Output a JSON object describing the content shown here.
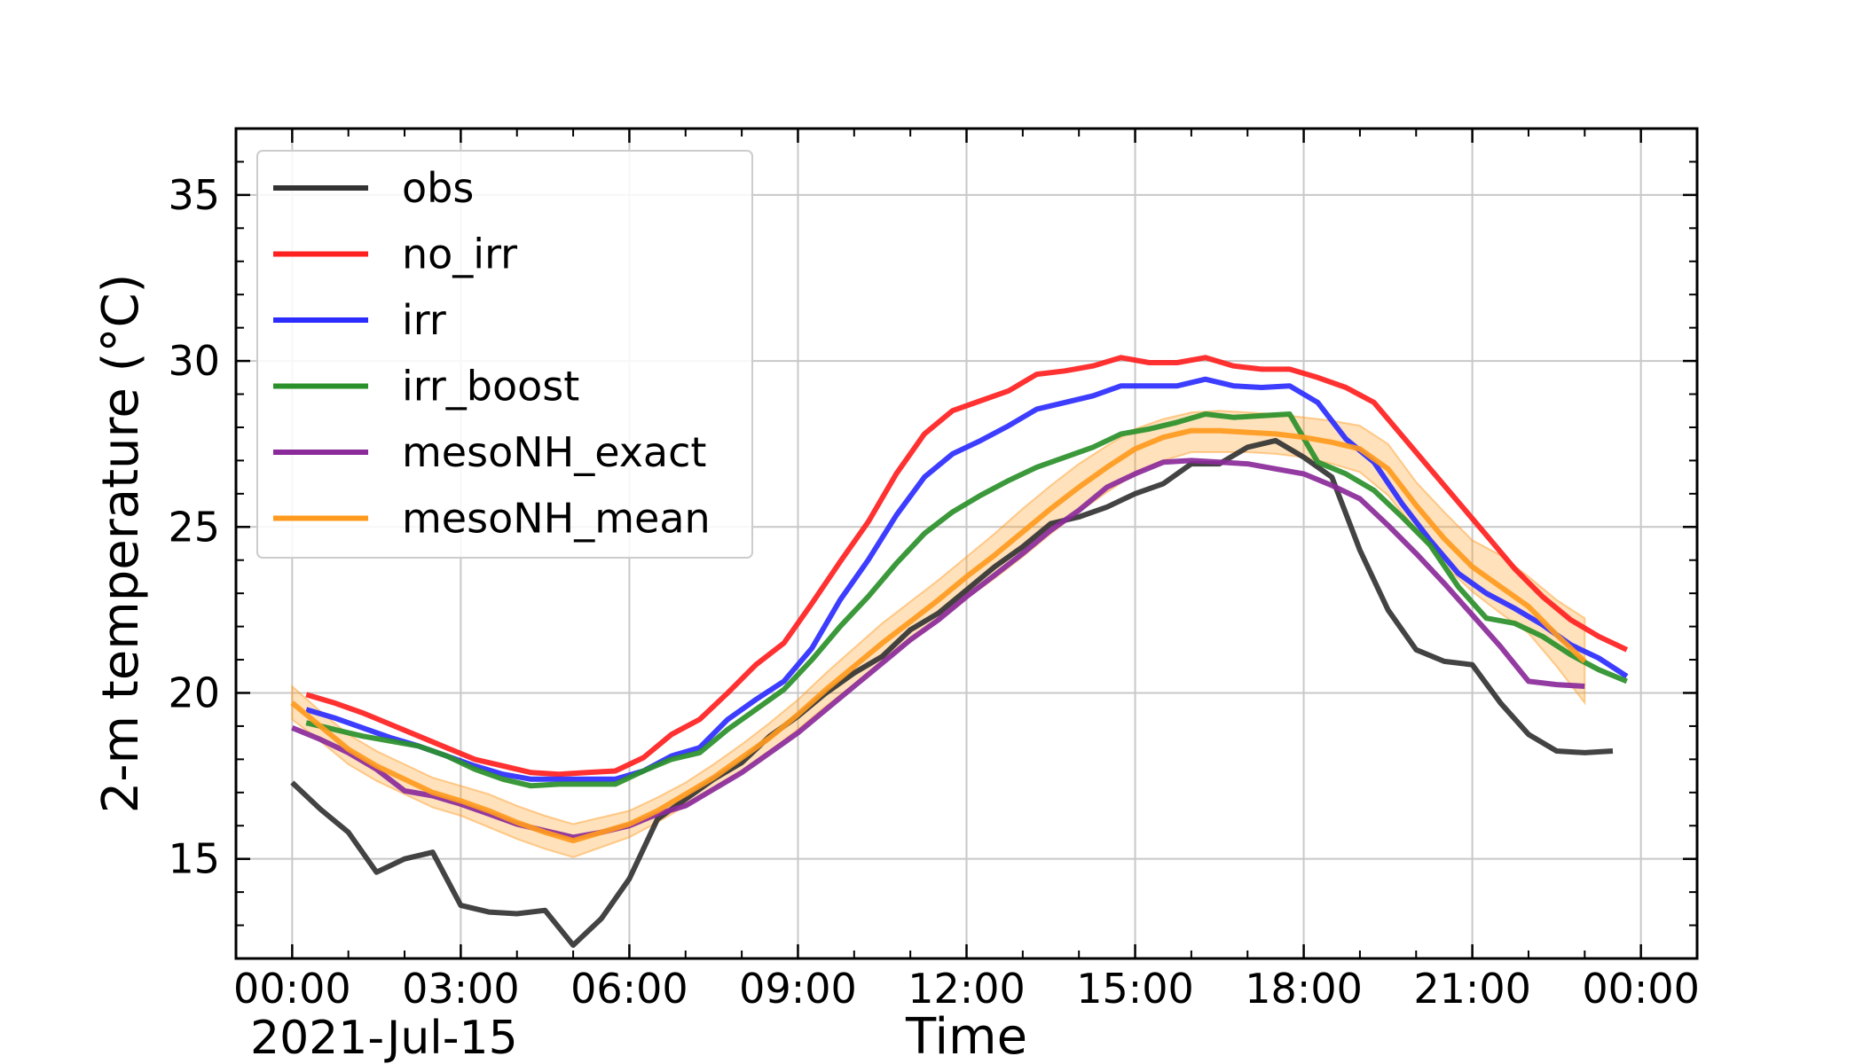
{
  "chart_data": {
    "type": "line",
    "xlabel": "Time",
    "ylabel": "2-m temperature (°C)",
    "date_label": "2021-Jul-15",
    "x_unit": "hours since 2021-07-15 00:00",
    "xlim": [
      -1.0,
      25.0
    ],
    "ylim": [
      12.0,
      37.0
    ],
    "x_ticks": [
      0,
      3,
      6,
      9,
      12,
      15,
      18,
      21,
      24
    ],
    "x_tick_labels": [
      "00:00",
      "03:00",
      "06:00",
      "09:00",
      "12:00",
      "15:00",
      "18:00",
      "21:00",
      "00:00"
    ],
    "y_ticks": [
      15,
      20,
      25,
      30,
      35
    ],
    "y_tick_labels": [
      "15",
      "20",
      "25",
      "30",
      "35"
    ],
    "grid": true,
    "legend_position": "top-left",
    "series": [
      {
        "name": "obs",
        "color": "#333333",
        "x": [
          0,
          0.5,
          1,
          1.5,
          2,
          2.5,
          3,
          3.5,
          4,
          4.5,
          5,
          5.5,
          6,
          6.5,
          7,
          7.5,
          8,
          8.5,
          9,
          9.5,
          10,
          10.5,
          11,
          11.5,
          12,
          12.5,
          13,
          13.5,
          14,
          14.5,
          15,
          15.5,
          16,
          16.5,
          17,
          17.5,
          18,
          18.5,
          19,
          19.5,
          20,
          20.5,
          21,
          21.5,
          22,
          22.5,
          23,
          23.5
        ],
        "y": [
          17.3,
          16.5,
          15.8,
          14.6,
          15.0,
          15.2,
          13.6,
          13.4,
          13.35,
          13.45,
          12.4,
          13.2,
          14.4,
          16.2,
          16.8,
          17.4,
          17.9,
          18.7,
          19.3,
          20.0,
          20.6,
          21.1,
          21.9,
          22.4,
          23.1,
          23.8,
          24.4,
          25.1,
          25.3,
          25.6,
          26.0,
          26.3,
          26.9,
          26.9,
          27.4,
          27.6,
          27.1,
          26.5,
          24.3,
          22.5,
          21.3,
          20.95,
          20.85,
          19.7,
          18.75,
          18.25,
          18.2,
          18.25
        ]
      },
      {
        "name": "no_irr",
        "color": "#ff2020",
        "x": [
          0.25,
          0.75,
          1.25,
          1.75,
          2.25,
          2.75,
          3.25,
          3.75,
          4.25,
          4.75,
          5.25,
          5.75,
          6.25,
          6.75,
          7.25,
          7.75,
          8.25,
          8.75,
          9.25,
          9.75,
          10.25,
          10.75,
          11.25,
          11.75,
          12.25,
          12.75,
          13.25,
          13.75,
          14.25,
          14.75,
          15.25,
          15.75,
          16.25,
          16.75,
          17.25,
          17.75,
          18.25,
          18.75,
          19.25,
          19.75,
          20.25,
          20.75,
          21.25,
          21.75,
          22.25,
          22.75,
          23.25,
          23.75
        ],
        "y": [
          19.95,
          19.7,
          19.4,
          19.05,
          18.7,
          18.35,
          18.0,
          17.8,
          17.6,
          17.55,
          17.6,
          17.65,
          18.05,
          18.75,
          19.2,
          20.0,
          20.85,
          21.5,
          22.7,
          23.95,
          25.15,
          26.6,
          27.8,
          28.5,
          28.8,
          29.1,
          29.6,
          29.7,
          29.85,
          30.1,
          29.95,
          29.95,
          30.1,
          29.85,
          29.75,
          29.75,
          29.5,
          29.2,
          28.75,
          27.75,
          26.75,
          25.75,
          24.75,
          23.75,
          22.9,
          22.2,
          21.7,
          21.3
        ]
      },
      {
        "name": "irr",
        "color": "#2c2cff",
        "x": [
          0.25,
          0.75,
          1.25,
          1.75,
          2.25,
          2.75,
          3.25,
          3.75,
          4.25,
          4.75,
          5.25,
          5.75,
          6.25,
          6.75,
          7.25,
          7.75,
          8.25,
          8.75,
          9.25,
          9.75,
          10.25,
          10.75,
          11.25,
          11.75,
          12.25,
          12.75,
          13.25,
          13.75,
          14.25,
          14.75,
          15.25,
          15.75,
          16.25,
          16.75,
          17.25,
          17.75,
          18.25,
          18.75,
          19.25,
          19.75,
          20.25,
          20.75,
          21.25,
          21.75,
          22.25,
          22.75,
          23.25,
          23.75
        ],
        "y": [
          19.5,
          19.25,
          18.95,
          18.65,
          18.4,
          18.1,
          17.8,
          17.55,
          17.4,
          17.4,
          17.4,
          17.4,
          17.65,
          18.1,
          18.35,
          19.2,
          19.8,
          20.35,
          21.35,
          22.8,
          24.0,
          25.35,
          26.5,
          27.2,
          27.6,
          28.05,
          28.55,
          28.75,
          28.95,
          29.25,
          29.25,
          29.25,
          29.45,
          29.25,
          29.2,
          29.25,
          28.75,
          27.65,
          26.95,
          25.7,
          24.6,
          23.6,
          23.0,
          22.55,
          22.05,
          21.45,
          21.05,
          20.5
        ]
      },
      {
        "name": "irr_boost",
        "color": "#2a902a",
        "x": [
          0.25,
          0.75,
          1.25,
          1.75,
          2.25,
          2.75,
          3.25,
          3.75,
          4.25,
          4.75,
          5.25,
          5.75,
          6.25,
          6.75,
          7.25,
          7.75,
          8.25,
          8.75,
          9.25,
          9.75,
          10.25,
          10.75,
          11.25,
          11.75,
          12.25,
          12.75,
          13.25,
          13.75,
          14.25,
          14.75,
          15.25,
          15.75,
          16.25,
          16.75,
          17.25,
          17.75,
          18.25,
          18.75,
          19.25,
          19.75,
          20.25,
          20.75,
          21.25,
          21.75,
          22.25,
          22.75,
          23.25,
          23.75
        ],
        "y": [
          19.1,
          18.9,
          18.7,
          18.55,
          18.4,
          18.1,
          17.7,
          17.4,
          17.2,
          17.25,
          17.25,
          17.25,
          17.65,
          18.0,
          18.2,
          18.9,
          19.5,
          20.1,
          21.0,
          22.0,
          22.9,
          23.9,
          24.8,
          25.45,
          25.95,
          26.4,
          26.8,
          27.1,
          27.4,
          27.8,
          27.95,
          28.15,
          28.4,
          28.3,
          28.35,
          28.4,
          26.95,
          26.6,
          26.1,
          25.3,
          24.45,
          23.2,
          22.25,
          22.1,
          21.7,
          21.15,
          20.7,
          20.35
        ]
      },
      {
        "name": "mesoNH_exact",
        "color": "#8b2a9a",
        "x": [
          0,
          0.5,
          1,
          1.5,
          2,
          2.5,
          3,
          3.5,
          4,
          4.5,
          5,
          5.5,
          6,
          6.5,
          7,
          7.5,
          8,
          8.5,
          9,
          9.5,
          10,
          10.5,
          11,
          11.5,
          12,
          12.5,
          13,
          13.5,
          14,
          14.5,
          15,
          15.5,
          16,
          16.5,
          17,
          17.5,
          18,
          18.5,
          19,
          19.5,
          20,
          20.5,
          21,
          21.5,
          22,
          22.5,
          23
        ],
        "y": [
          18.95,
          18.6,
          18.2,
          17.7,
          17.05,
          16.9,
          16.65,
          16.35,
          16.05,
          15.85,
          15.65,
          15.8,
          16.0,
          16.35,
          16.6,
          17.1,
          17.6,
          18.2,
          18.8,
          19.5,
          20.2,
          20.9,
          21.6,
          22.2,
          22.9,
          23.55,
          24.2,
          24.9,
          25.5,
          26.2,
          26.6,
          26.95,
          27.0,
          26.95,
          26.9,
          26.75,
          26.6,
          26.25,
          25.85,
          25.05,
          24.2,
          23.3,
          22.35,
          21.4,
          20.35,
          20.25,
          20.2
        ]
      },
      {
        "name": "mesoNH_mean",
        "color": "#ff9a1e",
        "x": [
          0,
          0.5,
          1,
          1.5,
          2,
          2.5,
          3,
          3.5,
          4,
          4.5,
          5,
          5.5,
          6,
          6.5,
          7,
          7.5,
          8,
          8.5,
          9,
          9.5,
          10,
          10.5,
          11,
          11.5,
          12,
          12.5,
          13,
          13.5,
          14,
          14.5,
          15,
          15.5,
          16,
          16.5,
          17,
          17.5,
          18,
          18.5,
          19,
          19.5,
          20,
          20.5,
          21,
          21.5,
          22,
          22.5,
          23
        ],
        "y": [
          19.7,
          19.0,
          18.3,
          17.8,
          17.4,
          17.0,
          16.75,
          16.45,
          16.1,
          15.8,
          15.55,
          15.8,
          16.05,
          16.45,
          16.95,
          17.45,
          18.05,
          18.65,
          19.35,
          20.1,
          20.8,
          21.5,
          22.15,
          22.8,
          23.5,
          24.15,
          24.85,
          25.55,
          26.2,
          26.8,
          27.35,
          27.7,
          27.9,
          27.9,
          27.85,
          27.8,
          27.7,
          27.55,
          27.35,
          26.75,
          25.65,
          24.65,
          23.8,
          23.2,
          22.6,
          21.75,
          20.95
        ],
        "band_low": [
          19.2,
          18.55,
          17.85,
          17.35,
          16.95,
          16.55,
          16.3,
          15.95,
          15.6,
          15.3,
          15.05,
          15.35,
          15.65,
          16.1,
          16.6,
          17.1,
          17.65,
          18.25,
          18.9,
          19.6,
          20.25,
          20.95,
          21.55,
          22.2,
          22.85,
          23.45,
          24.1,
          24.8,
          25.45,
          26.05,
          26.6,
          27.0,
          27.25,
          27.25,
          27.25,
          27.2,
          27.1,
          26.9,
          26.65,
          25.95,
          24.9,
          23.85,
          23.05,
          22.4,
          21.8,
          20.8,
          19.7
        ],
        "band_high": [
          20.2,
          19.45,
          18.75,
          18.25,
          17.85,
          17.45,
          17.2,
          16.95,
          16.6,
          16.3,
          16.05,
          16.25,
          16.45,
          16.85,
          17.3,
          17.85,
          18.45,
          19.1,
          19.8,
          20.6,
          21.35,
          22.1,
          22.75,
          23.4,
          24.1,
          24.8,
          25.55,
          26.25,
          26.9,
          27.45,
          27.95,
          28.25,
          28.45,
          28.5,
          28.45,
          28.4,
          28.3,
          28.2,
          28.05,
          27.5,
          26.35,
          25.45,
          24.6,
          24.15,
          23.5,
          22.8,
          22.25
        ]
      }
    ]
  }
}
